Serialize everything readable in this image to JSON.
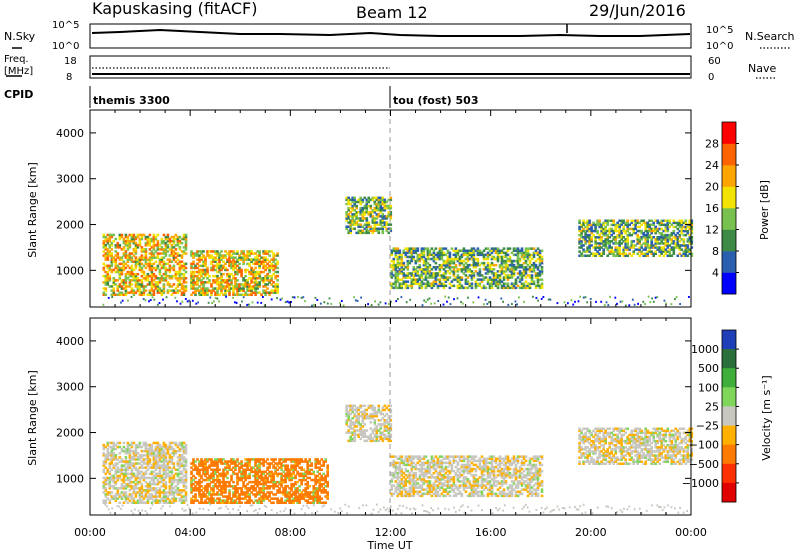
{
  "header": {
    "station": "Kapuskasing (fitACF)",
    "beam": "Beam 12",
    "date": "29/Jun/2016"
  },
  "noise_panel": {
    "left_label": "N.Sky",
    "right_label": "N.Search",
    "left_ticks": [
      "10^5",
      "10^0"
    ],
    "right_ticks": [
      "10^5",
      "10^0"
    ]
  },
  "freq_panel": {
    "left_label_1": "Freq.",
    "left_label_2": "[MHz]",
    "right_label": "Nave",
    "left_ticks": [
      "18",
      "8"
    ],
    "right_ticks": [
      "60",
      "0"
    ]
  },
  "cpid_panel": {
    "label": "CPID",
    "modes": [
      {
        "name": "themis 3300",
        "start_hour": 0
      },
      {
        "name": "tou (fost) 503",
        "start_hour": 12
      }
    ]
  },
  "chart_data": [
    {
      "type": "heatmap",
      "panel": "power",
      "ylabel": "Slant Range [km]",
      "y_ticks": [
        "1000",
        "2000",
        "3000",
        "4000"
      ],
      "ylim": [
        200,
        4500
      ],
      "xlim": [
        0,
        24
      ],
      "colorbar_label": "Power [dB]",
      "colorbar_ticks": [
        "4",
        "8",
        "12",
        "16",
        "20",
        "24",
        "28"
      ],
      "colorbar_range": [
        0,
        30
      ],
      "colors": [
        "#0000ff",
        "#2a5fb0",
        "#3c8a46",
        "#78c14e",
        "#f2e400",
        "#ffa500",
        "#ff6400",
        "#ff0000"
      ],
      "echo_regions": [
        {
          "t0": 0.5,
          "t1": 3.8,
          "r0": 450,
          "r1": 1800,
          "level": 18
        },
        {
          "t0": 4.0,
          "t1": 7.5,
          "r0": 450,
          "r1": 1400,
          "level": 18
        },
        {
          "t0": 10.2,
          "t1": 12.0,
          "r0": 1800,
          "r1": 2600,
          "level": 12
        },
        {
          "t0": 12.0,
          "t1": 18.0,
          "r0": 600,
          "r1": 1500,
          "level": 12
        },
        {
          "t0": 19.5,
          "t1": 24.0,
          "r0": 1300,
          "r1": 2100,
          "level": 12
        }
      ]
    },
    {
      "type": "heatmap",
      "panel": "velocity",
      "ylabel": "Slant Range [km]",
      "xlabel": "Time UT",
      "y_ticks": [
        "1000",
        "2000",
        "3000",
        "4000"
      ],
      "ylim": [
        200,
        4500
      ],
      "xlim": [
        0,
        24
      ],
      "x_ticks": [
        "00:00",
        "04:00",
        "08:00",
        "12:00",
        "16:00",
        "20:00",
        "00:00"
      ],
      "colorbar_label": "Velocity [m s⁻¹]",
      "colorbar_ticks": [
        "1000",
        "500",
        "100",
        "25",
        "−25",
        "−100",
        "−500",
        "−1000"
      ],
      "colors": [
        "#1f3fb8",
        "#2a6f3a",
        "#3fae3a",
        "#7fd65a",
        "#c8c8c0",
        "#ffb000",
        "#ff7a00",
        "#ff3000",
        "#e00000"
      ],
      "echo_regions": [
        {
          "t0": 0.5,
          "t1": 3.8,
          "r0": 450,
          "r1": 1800,
          "level": 0
        },
        {
          "t0": 4.0,
          "t1": 9.5,
          "r0": 450,
          "r1": 1400,
          "level": -150
        },
        {
          "t0": 10.2,
          "t1": 12.0,
          "r0": 1800,
          "r1": 2600,
          "level": 0
        },
        {
          "t0": 12.0,
          "t1": 18.0,
          "r0": 600,
          "r1": 1500,
          "level": 0
        },
        {
          "t0": 19.5,
          "t1": 24.0,
          "r0": 1300,
          "r1": 2100,
          "level": 0
        }
      ]
    }
  ]
}
